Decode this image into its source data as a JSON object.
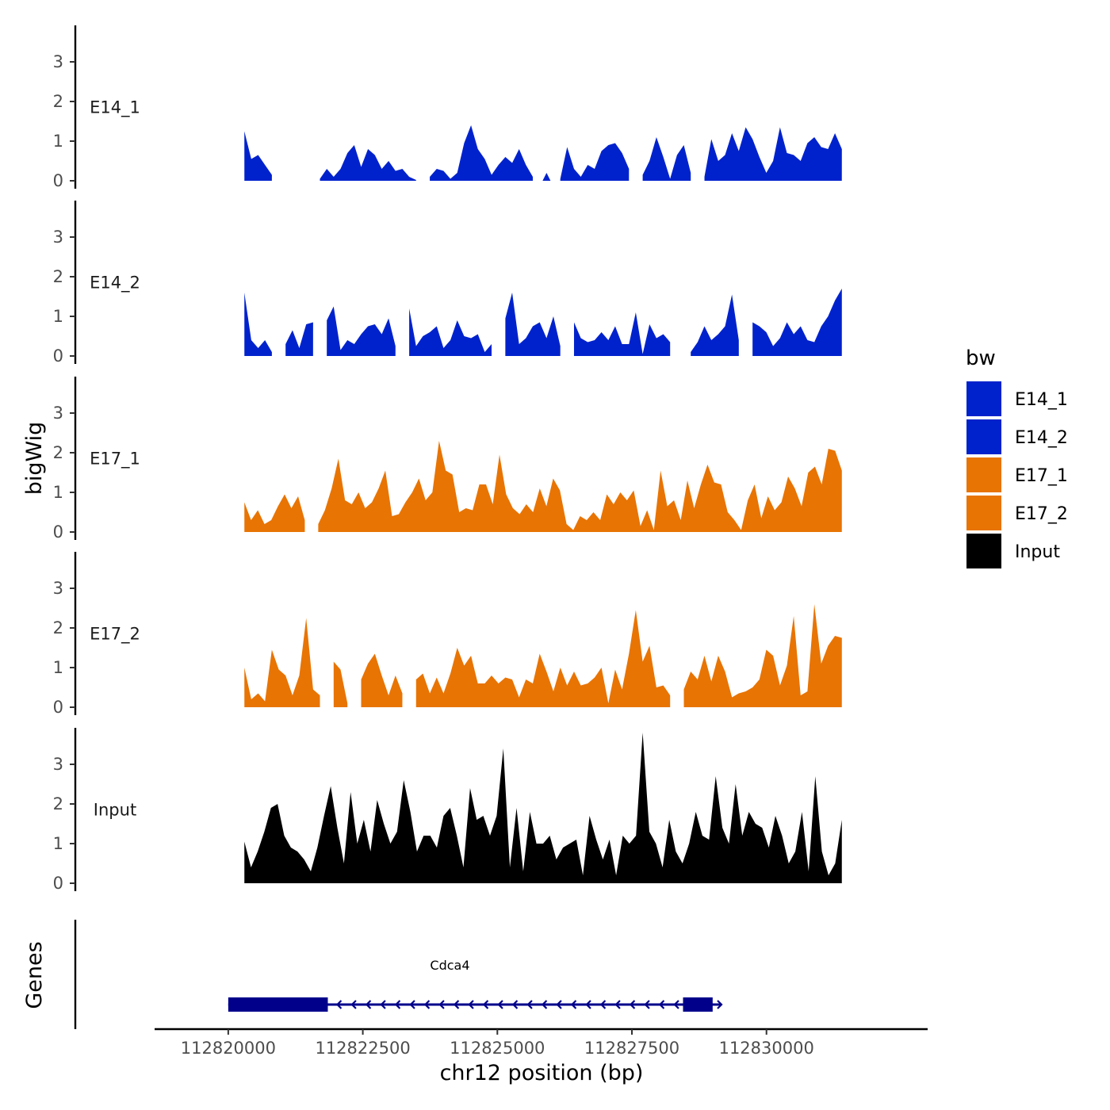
{
  "chart_data": {
    "type": "area",
    "ylabel": "bigWig",
    "xlabel": "chr12 position (bp)",
    "x_ticks": [
      "112820000",
      "112822500",
      "112825000",
      "112827500",
      "112830000"
    ],
    "x_tick_values": [
      112820000,
      112822500,
      112825000,
      112827500,
      112830000
    ],
    "xlim": [
      112819000,
      112832700
    ],
    "ylim": [
      0,
      4
    ],
    "y_ticks": [
      "0",
      "1",
      "2",
      "3"
    ],
    "y_tick_values": [
      0,
      1,
      2,
      3
    ],
    "colors": {
      "E14": "#0022CC",
      "E17": "#E87404",
      "Input": "#000000",
      "gene": "#00008B"
    },
    "legend": {
      "title": "bw",
      "position": "right",
      "entries": [
        {
          "label": "E14_1",
          "color": "#0022CC"
        },
        {
          "label": "E14_2",
          "color": "#0022CC"
        },
        {
          "label": "E17_1",
          "color": "#E87404"
        },
        {
          "label": "E17_2",
          "color": "#E87404"
        },
        {
          "label": "Input",
          "color": "#000000"
        }
      ]
    },
    "series": [
      {
        "name": "E14_1",
        "color": "#0022CC",
        "x_start": 112820300,
        "x_end": 112831400,
        "values": [
          1.25,
          0.55,
          0.65,
          0.4,
          0.15,
          null,
          null,
          null,
          null,
          null,
          null,
          0.05,
          0.3,
          0.1,
          0.3,
          0.7,
          0.9,
          0.35,
          0.8,
          0.65,
          0.3,
          0.5,
          0.25,
          0.3,
          0.1,
          0.02,
          null,
          0.1,
          0.3,
          0.25,
          0.05,
          0.2,
          0.95,
          1.4,
          0.8,
          0.55,
          0.15,
          0.4,
          0.6,
          0.45,
          0.8,
          0.4,
          0.1,
          null,
          0.2,
          null,
          0.05,
          0.85,
          0.3,
          0.1,
          0.4,
          0.3,
          0.75,
          0.9,
          0.95,
          0.7,
          0.3,
          null,
          0.15,
          0.5,
          1.1,
          0.6,
          0.05,
          0.65,
          0.9,
          0.2,
          null,
          0.1,
          1.05,
          0.5,
          0.65,
          1.2,
          0.75,
          1.35,
          1.05,
          0.6,
          0.2,
          0.5,
          1.35,
          0.7,
          0.65,
          0.5,
          0.95,
          1.1,
          0.85,
          0.8,
          1.2,
          0.8
        ]
      },
      {
        "name": "E14_2",
        "color": "#0022CC",
        "x_start": 112820300,
        "x_end": 112831400,
        "values": [
          1.6,
          0.4,
          0.2,
          0.4,
          0.1,
          null,
          0.3,
          0.65,
          0.2,
          0.8,
          0.85,
          null,
          0.9,
          1.25,
          0.15,
          0.4,
          0.3,
          0.55,
          0.75,
          0.8,
          0.55,
          0.95,
          0.25,
          null,
          1.2,
          0.25,
          0.5,
          0.6,
          0.75,
          0.2,
          0.4,
          0.9,
          0.5,
          0.45,
          0.55,
          0.1,
          0.3,
          null,
          0.95,
          1.6,
          0.3,
          0.45,
          0.75,
          0.85,
          0.45,
          1.0,
          0.25,
          null,
          0.85,
          0.45,
          0.35,
          0.4,
          0.6,
          0.4,
          0.75,
          0.3,
          0.3,
          1.1,
          0.05,
          0.8,
          0.45,
          0.55,
          0.35,
          null,
          null,
          0.1,
          0.35,
          0.75,
          0.4,
          0.55,
          0.75,
          1.55,
          0.4,
          null,
          0.85,
          0.75,
          0.6,
          0.25,
          0.45,
          0.85,
          0.55,
          0.75,
          0.4,
          0.35,
          0.75,
          1.0,
          1.4,
          1.7
        ]
      },
      {
        "name": "E17_1",
        "color": "#E87404",
        "x_start": 112820300,
        "x_end": 112831400,
        "values": [
          0.75,
          0.3,
          0.55,
          0.2,
          0.3,
          0.65,
          0.95,
          0.6,
          0.9,
          0.3,
          null,
          0.2,
          0.55,
          1.1,
          1.85,
          0.8,
          0.7,
          1.0,
          0.6,
          0.75,
          1.1,
          1.55,
          0.4,
          0.45,
          0.75,
          1.0,
          1.35,
          0.8,
          1.0,
          2.3,
          1.55,
          1.45,
          0.5,
          0.6,
          0.55,
          1.2,
          1.2,
          0.7,
          1.95,
          0.95,
          0.6,
          0.45,
          0.7,
          0.5,
          1.1,
          0.65,
          1.35,
          1.05,
          0.2,
          0.05,
          0.4,
          0.3,
          0.5,
          0.3,
          0.95,
          0.7,
          1.0,
          0.8,
          1.05,
          0.15,
          0.55,
          0.05,
          1.55,
          0.65,
          0.8,
          0.3,
          1.3,
          0.6,
          1.2,
          1.7,
          1.25,
          1.2,
          0.5,
          0.3,
          0.05,
          0.8,
          1.2,
          0.35,
          0.9,
          0.55,
          0.75,
          1.4,
          1.1,
          0.65,
          1.5,
          1.65,
          1.2,
          2.1,
          2.05,
          1.55
        ]
      },
      {
        "name": "E17_2",
        "color": "#E87404",
        "x_start": 112820300,
        "x_end": 112831400,
        "values": [
          1.0,
          0.2,
          0.35,
          0.15,
          1.45,
          0.95,
          0.8,
          0.3,
          0.8,
          2.25,
          0.45,
          0.3,
          null,
          1.15,
          0.95,
          0.1,
          null,
          0.7,
          1.1,
          1.35,
          0.8,
          0.3,
          0.8,
          0.35,
          null,
          0.7,
          0.85,
          0.35,
          0.75,
          0.35,
          0.85,
          1.5,
          1.05,
          1.3,
          0.6,
          0.6,
          0.8,
          0.6,
          0.75,
          0.7,
          0.25,
          0.7,
          0.6,
          1.35,
          0.9,
          0.4,
          1.0,
          0.55,
          0.9,
          0.55,
          0.6,
          0.75,
          1.0,
          0.1,
          0.95,
          0.45,
          1.35,
          2.45,
          1.15,
          1.55,
          0.5,
          0.55,
          0.3,
          null,
          0.45,
          0.9,
          0.7,
          1.3,
          0.65,
          1.3,
          0.9,
          0.25,
          0.35,
          0.4,
          0.5,
          0.7,
          1.45,
          1.3,
          0.55,
          1.05,
          2.3,
          0.3,
          0.4,
          2.6,
          1.1,
          1.55,
          1.8,
          1.75
        ]
      },
      {
        "name": "Input",
        "color": "#000000",
        "x_start": 112820300,
        "x_end": 112831400,
        "values": [
          1.05,
          0.4,
          0.8,
          1.3,
          1.9,
          2.0,
          1.2,
          0.9,
          0.8,
          0.6,
          0.3,
          0.9,
          1.7,
          2.45,
          1.4,
          0.5,
          2.3,
          1.0,
          1.6,
          0.8,
          2.1,
          1.5,
          1.0,
          1.3,
          2.6,
          1.8,
          0.8,
          1.2,
          1.2,
          0.9,
          1.7,
          1.9,
          1.2,
          0.4,
          2.4,
          1.6,
          1.7,
          1.2,
          1.7,
          3.4,
          0.4,
          1.9,
          0.3,
          1.8,
          1.0,
          1.0,
          1.2,
          0.6,
          0.9,
          1.0,
          1.1,
          0.2,
          1.7,
          1.1,
          0.6,
          1.1,
          0.2,
          1.2,
          1.0,
          1.2,
          3.8,
          1.3,
          1.0,
          0.4,
          1.6,
          0.8,
          0.5,
          1.0,
          1.8,
          1.2,
          1.1,
          2.7,
          1.4,
          1.0,
          2.5,
          1.2,
          1.8,
          1.5,
          1.4,
          0.9,
          1.7,
          1.2,
          0.5,
          0.8,
          1.8,
          0.3,
          2.7,
          0.8,
          0.2,
          0.5,
          1.6
        ]
      }
    ],
    "genes": {
      "axis_label": "Genes",
      "items": [
        {
          "name": "Cdca4",
          "start": 112820000,
          "end": 112829150,
          "strand": "-",
          "exons": [
            [
              112820000,
              112821850
            ],
            [
              112828450,
              112829000
            ]
          ]
        }
      ]
    }
  }
}
